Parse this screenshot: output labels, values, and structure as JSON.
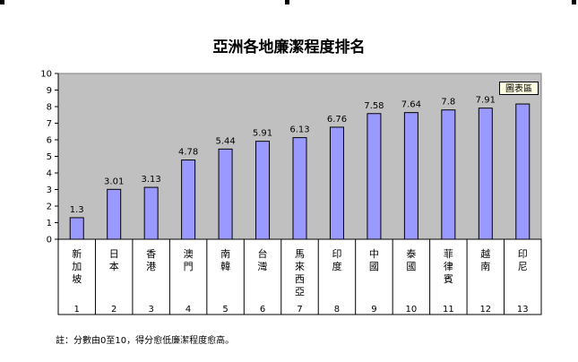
{
  "chart_data": {
    "type": "bar",
    "title": "亞洲各地廉潔程度排名",
    "categories": [
      "新加坡",
      "日本",
      "香港",
      "澳門",
      "南韓",
      "台灣",
      "馬來西亞",
      "印度",
      "中國",
      "泰國",
      "菲律賓",
      "越南",
      "印尼"
    ],
    "ranks": [
      "1",
      "2",
      "3",
      "4",
      "5",
      "6",
      "7",
      "8",
      "9",
      "10",
      "11",
      "12",
      "13"
    ],
    "values": [
      1.3,
      3.01,
      3.13,
      4.78,
      5.44,
      5.91,
      6.13,
      6.76,
      7.58,
      7.64,
      7.8,
      7.91,
      8.16
    ],
    "value_labels": [
      "1.3",
      "3.01",
      "3.13",
      "4.78",
      "5.44",
      "5.91",
      "6.13",
      "6.76",
      "7.58",
      "7.64",
      "7.8",
      "7.91",
      ""
    ],
    "ylim": [
      0,
      10
    ],
    "yticks": [
      "0",
      "1",
      "2",
      "3",
      "4",
      "5",
      "6",
      "7",
      "8",
      "9",
      "10"
    ],
    "plot_bg": "#c0c0c0",
    "bar_color": "#9999ff",
    "grid": false
  },
  "tooltip": "圖表區",
  "footnote": "註：分數由0至10，得分愈低廉潔程度愈高。"
}
